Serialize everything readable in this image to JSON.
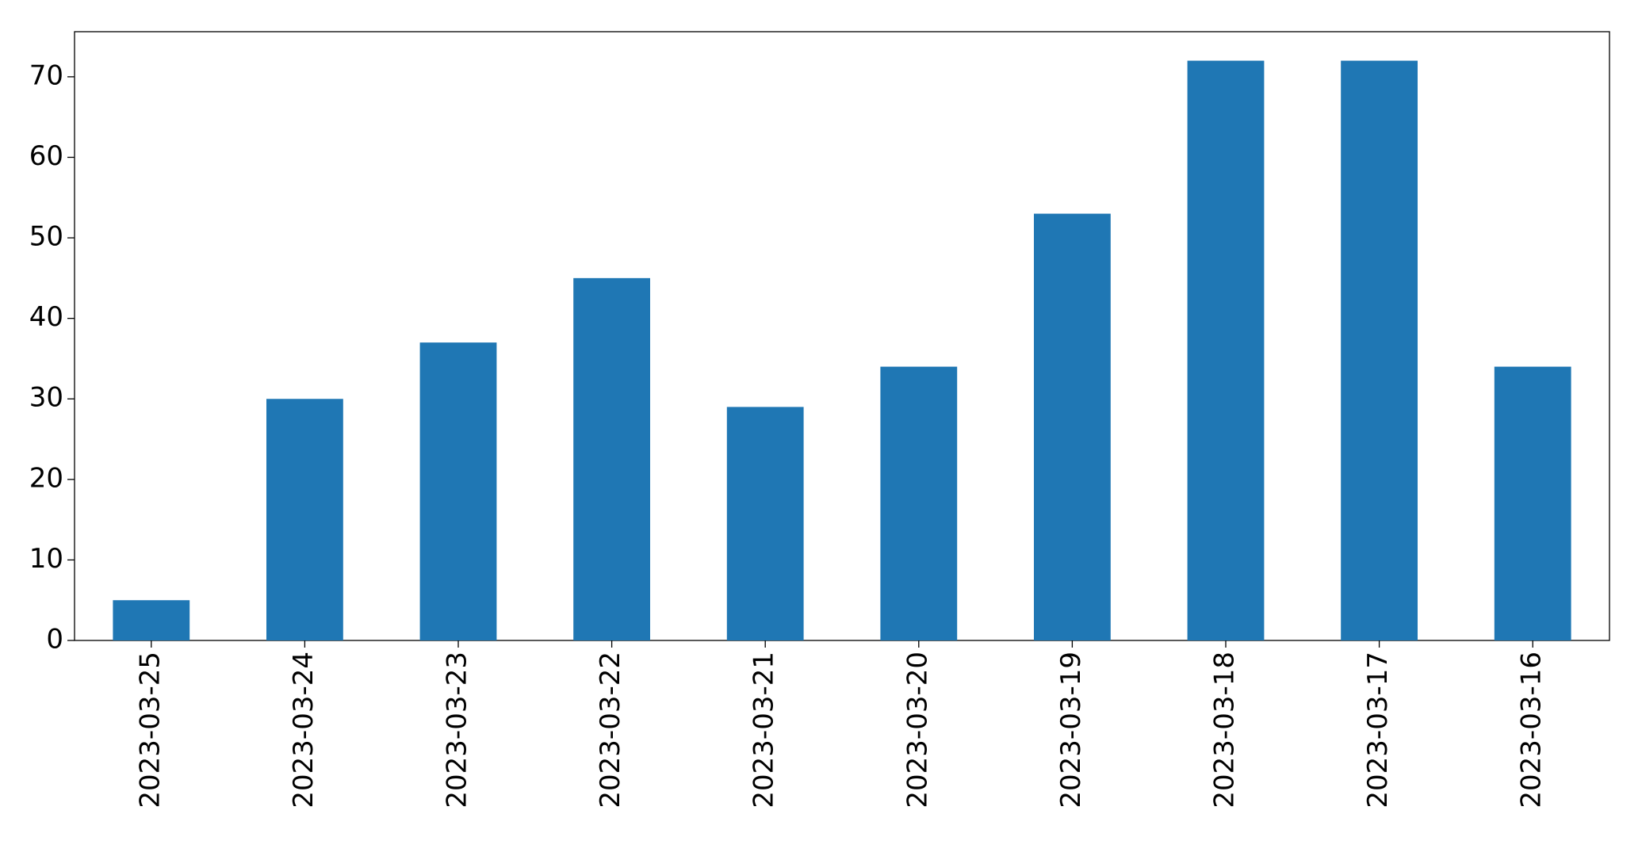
{
  "chart_data": {
    "type": "bar",
    "categories": [
      "2023-03-25",
      "2023-03-24",
      "2023-03-23",
      "2023-03-22",
      "2023-03-21",
      "2023-03-20",
      "2023-03-19",
      "2023-03-18",
      "2023-03-17",
      "2023-03-16"
    ],
    "values": [
      5,
      30,
      37,
      45,
      29,
      34,
      53,
      72,
      72,
      34
    ],
    "color": "#1f77b4",
    "ylim": [
      0,
      75.6
    ],
    "yticks": [
      0,
      10,
      20,
      30,
      40,
      50,
      60,
      70
    ],
    "grid": false
  }
}
